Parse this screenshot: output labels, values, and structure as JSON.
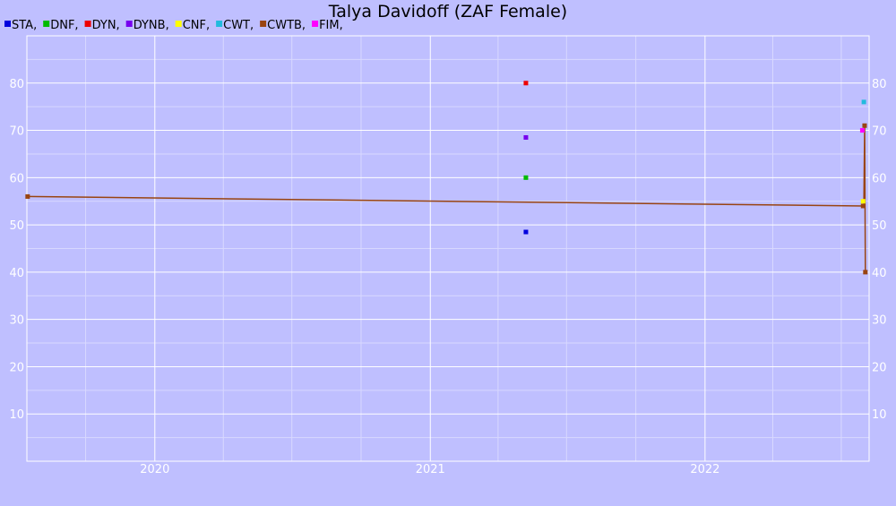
{
  "chart_data": {
    "type": "scatter",
    "title": "Talya Davidoff (ZAF Female)",
    "xlabel": "",
    "ylabel": "",
    "x_range": [
      "2019-07-15",
      "2022-08-07"
    ],
    "ylim": [
      0,
      90
    ],
    "y_ticks": [
      10,
      20,
      30,
      40,
      50,
      60,
      70,
      80
    ],
    "x_ticks": [
      {
        "date": "2020-01-01",
        "label": "2020"
      },
      {
        "date": "2021-01-01",
        "label": "2021"
      },
      {
        "date": "2022-01-01",
        "label": "2022"
      }
    ],
    "grid": true,
    "legend_placement": "top-left",
    "legend": [
      {
        "label": "STA,",
        "color": "#0000dd"
      },
      {
        "label": "DNF,",
        "color": "#00bb00"
      },
      {
        "label": "DYN,",
        "color": "#ee0000"
      },
      {
        "label": "DYNB,",
        "color": "#7700ee"
      },
      {
        "label": "CNF,",
        "color": "#ffff00"
      },
      {
        "label": "CWT,",
        "color": "#22bbdd"
      },
      {
        "label": "CWTB,",
        "color": "#994411"
      },
      {
        "label": "FIM,",
        "color": "#ff00ff"
      }
    ],
    "series": [
      {
        "name": "STA",
        "color": "#0000dd",
        "points": [
          {
            "x": "2021-05-08",
            "y": 48.5
          }
        ]
      },
      {
        "name": "DNF",
        "color": "#00bb00",
        "points": [
          {
            "x": "2021-05-08",
            "y": 60
          }
        ]
      },
      {
        "name": "DYN",
        "color": "#ee0000",
        "points": [
          {
            "x": "2021-05-08",
            "y": 80
          }
        ]
      },
      {
        "name": "DYNB",
        "color": "#7700ee",
        "points": [
          {
            "x": "2021-05-08",
            "y": 68.5
          }
        ]
      },
      {
        "name": "CNF",
        "color": "#ffff00",
        "points": [
          {
            "x": "2022-07-30",
            "y": 55
          }
        ]
      },
      {
        "name": "CWT",
        "color": "#22bbdd",
        "points": [
          {
            "x": "2022-07-31",
            "y": 76
          }
        ]
      },
      {
        "name": "FIM",
        "color": "#ff00ff",
        "points": [
          {
            "x": "2022-07-29",
            "y": 70
          }
        ]
      },
      {
        "name": "CWTB",
        "color": "#994411",
        "points": [
          {
            "x": "2019-07-16",
            "y": 56
          },
          {
            "x": "2022-07-30",
            "y": 54
          },
          {
            "x": "2022-08-01",
            "y": 71
          },
          {
            "x": "2022-08-02",
            "y": 40
          }
        ],
        "trend": [
          {
            "x": "2019-07-15",
            "y": 56
          },
          {
            "x": "2022-07-30",
            "y": 54
          },
          {
            "x": "2022-07-31",
            "y": 54
          },
          {
            "x": "2022-08-01",
            "y": 71
          },
          {
            "x": "2022-08-02",
            "y": 40
          }
        ]
      }
    ]
  }
}
